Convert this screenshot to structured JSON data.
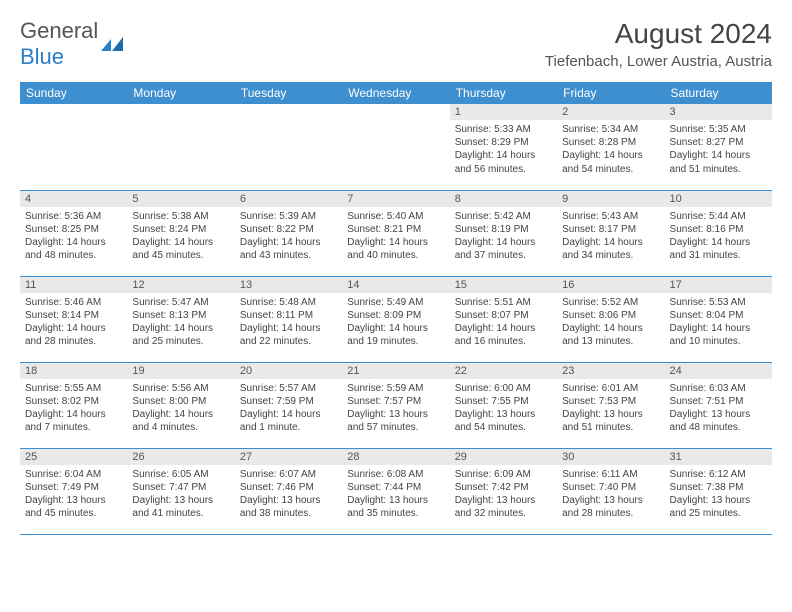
{
  "branding": {
    "logo_text_1": "General",
    "logo_text_2": "Blue"
  },
  "header": {
    "month_title": "August 2024",
    "location": "Tiefenbach, Lower Austria, Austria"
  },
  "colors": {
    "header_bg": "#3e8fd0",
    "daynum_bg": "#e9e9e9",
    "brand_blue": "#2a7fc9"
  },
  "weekdays": [
    "Sunday",
    "Monday",
    "Tuesday",
    "Wednesday",
    "Thursday",
    "Friday",
    "Saturday"
  ],
  "leading_blanks": 4,
  "days": [
    {
      "n": 1,
      "sunrise": "5:33 AM",
      "sunset": "8:29 PM",
      "daylight": "14 hours and 56 minutes."
    },
    {
      "n": 2,
      "sunrise": "5:34 AM",
      "sunset": "8:28 PM",
      "daylight": "14 hours and 54 minutes."
    },
    {
      "n": 3,
      "sunrise": "5:35 AM",
      "sunset": "8:27 PM",
      "daylight": "14 hours and 51 minutes."
    },
    {
      "n": 4,
      "sunrise": "5:36 AM",
      "sunset": "8:25 PM",
      "daylight": "14 hours and 48 minutes."
    },
    {
      "n": 5,
      "sunrise": "5:38 AM",
      "sunset": "8:24 PM",
      "daylight": "14 hours and 45 minutes."
    },
    {
      "n": 6,
      "sunrise": "5:39 AM",
      "sunset": "8:22 PM",
      "daylight": "14 hours and 43 minutes."
    },
    {
      "n": 7,
      "sunrise": "5:40 AM",
      "sunset": "8:21 PM",
      "daylight": "14 hours and 40 minutes."
    },
    {
      "n": 8,
      "sunrise": "5:42 AM",
      "sunset": "8:19 PM",
      "daylight": "14 hours and 37 minutes."
    },
    {
      "n": 9,
      "sunrise": "5:43 AM",
      "sunset": "8:17 PM",
      "daylight": "14 hours and 34 minutes."
    },
    {
      "n": 10,
      "sunrise": "5:44 AM",
      "sunset": "8:16 PM",
      "daylight": "14 hours and 31 minutes."
    },
    {
      "n": 11,
      "sunrise": "5:46 AM",
      "sunset": "8:14 PM",
      "daylight": "14 hours and 28 minutes."
    },
    {
      "n": 12,
      "sunrise": "5:47 AM",
      "sunset": "8:13 PM",
      "daylight": "14 hours and 25 minutes."
    },
    {
      "n": 13,
      "sunrise": "5:48 AM",
      "sunset": "8:11 PM",
      "daylight": "14 hours and 22 minutes."
    },
    {
      "n": 14,
      "sunrise": "5:49 AM",
      "sunset": "8:09 PM",
      "daylight": "14 hours and 19 minutes."
    },
    {
      "n": 15,
      "sunrise": "5:51 AM",
      "sunset": "8:07 PM",
      "daylight": "14 hours and 16 minutes."
    },
    {
      "n": 16,
      "sunrise": "5:52 AM",
      "sunset": "8:06 PM",
      "daylight": "14 hours and 13 minutes."
    },
    {
      "n": 17,
      "sunrise": "5:53 AM",
      "sunset": "8:04 PM",
      "daylight": "14 hours and 10 minutes."
    },
    {
      "n": 18,
      "sunrise": "5:55 AM",
      "sunset": "8:02 PM",
      "daylight": "14 hours and 7 minutes."
    },
    {
      "n": 19,
      "sunrise": "5:56 AM",
      "sunset": "8:00 PM",
      "daylight": "14 hours and 4 minutes."
    },
    {
      "n": 20,
      "sunrise": "5:57 AM",
      "sunset": "7:59 PM",
      "daylight": "14 hours and 1 minute."
    },
    {
      "n": 21,
      "sunrise": "5:59 AM",
      "sunset": "7:57 PM",
      "daylight": "13 hours and 57 minutes."
    },
    {
      "n": 22,
      "sunrise": "6:00 AM",
      "sunset": "7:55 PM",
      "daylight": "13 hours and 54 minutes."
    },
    {
      "n": 23,
      "sunrise": "6:01 AM",
      "sunset": "7:53 PM",
      "daylight": "13 hours and 51 minutes."
    },
    {
      "n": 24,
      "sunrise": "6:03 AM",
      "sunset": "7:51 PM",
      "daylight": "13 hours and 48 minutes."
    },
    {
      "n": 25,
      "sunrise": "6:04 AM",
      "sunset": "7:49 PM",
      "daylight": "13 hours and 45 minutes."
    },
    {
      "n": 26,
      "sunrise": "6:05 AM",
      "sunset": "7:47 PM",
      "daylight": "13 hours and 41 minutes."
    },
    {
      "n": 27,
      "sunrise": "6:07 AM",
      "sunset": "7:46 PM",
      "daylight": "13 hours and 38 minutes."
    },
    {
      "n": 28,
      "sunrise": "6:08 AM",
      "sunset": "7:44 PM",
      "daylight": "13 hours and 35 minutes."
    },
    {
      "n": 29,
      "sunrise": "6:09 AM",
      "sunset": "7:42 PM",
      "daylight": "13 hours and 32 minutes."
    },
    {
      "n": 30,
      "sunrise": "6:11 AM",
      "sunset": "7:40 PM",
      "daylight": "13 hours and 28 minutes."
    },
    {
      "n": 31,
      "sunrise": "6:12 AM",
      "sunset": "7:38 PM",
      "daylight": "13 hours and 25 minutes."
    }
  ],
  "labels": {
    "sunrise": "Sunrise: ",
    "sunset": "Sunset: ",
    "daylight": "Daylight: "
  }
}
